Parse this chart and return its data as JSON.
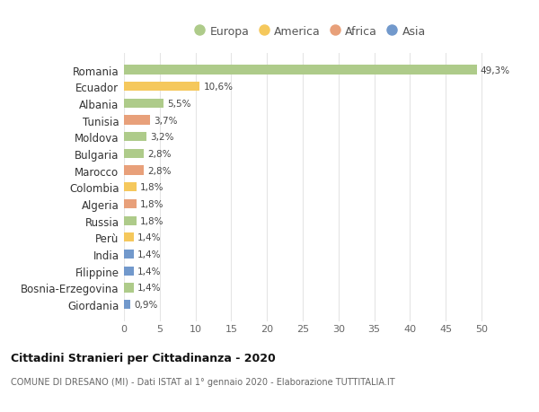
{
  "countries": [
    "Romania",
    "Ecuador",
    "Albania",
    "Tunisia",
    "Moldova",
    "Bulgaria",
    "Marocco",
    "Colombia",
    "Algeria",
    "Russia",
    "Perù",
    "India",
    "Filippine",
    "Bosnia-Erzegovina",
    "Giordania"
  ],
  "values": [
    49.3,
    10.6,
    5.5,
    3.7,
    3.2,
    2.8,
    2.8,
    1.8,
    1.8,
    1.8,
    1.4,
    1.4,
    1.4,
    1.4,
    0.9
  ],
  "labels": [
    "49,3%",
    "10,6%",
    "5,5%",
    "3,7%",
    "3,2%",
    "2,8%",
    "2,8%",
    "1,8%",
    "1,8%",
    "1,8%",
    "1,4%",
    "1,4%",
    "1,4%",
    "1,4%",
    "0,9%"
  ],
  "continents": [
    "Europa",
    "America",
    "Europa",
    "Africa",
    "Europa",
    "Europa",
    "Africa",
    "America",
    "Africa",
    "Europa",
    "America",
    "Asia",
    "Asia",
    "Europa",
    "Asia"
  ],
  "continent_colors": {
    "Europa": "#aecb8a",
    "America": "#f5c85c",
    "Africa": "#e8a07a",
    "Asia": "#7299cc"
  },
  "legend_order": [
    "Europa",
    "America",
    "Africa",
    "Asia"
  ],
  "title": "Cittadini Stranieri per Cittadinanza - 2020",
  "subtitle": "COMUNE DI DRESANO (MI) - Dati ISTAT al 1° gennaio 2020 - Elaborazione TUTTITALIA.IT",
  "xlim": [
    0,
    52
  ],
  "xticks": [
    0,
    5,
    10,
    15,
    20,
    25,
    30,
    35,
    40,
    45,
    50
  ],
  "background_color": "#ffffff",
  "grid_color": "#e5e5e5"
}
